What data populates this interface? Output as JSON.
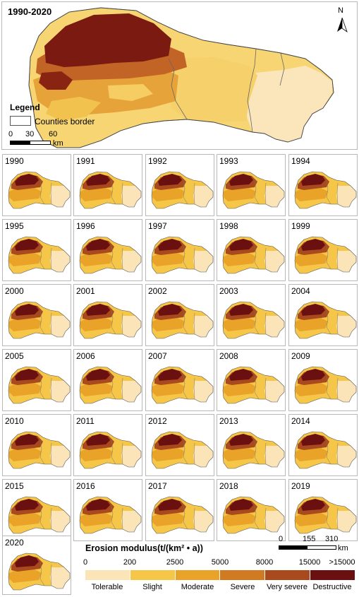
{
  "main_map": {
    "title": "1990-2020",
    "north_label": "N",
    "legend_title": "Legend",
    "legend_item": "Counties border",
    "scale_ticks": [
      "0",
      "30",
      "60"
    ],
    "scale_unit": "km"
  },
  "years": [
    "1990",
    "1991",
    "1992",
    "1993",
    "1994",
    "1995",
    "1996",
    "1997",
    "1998",
    "1999",
    "2000",
    "2001",
    "2002",
    "2003",
    "2004",
    "2005",
    "2006",
    "2007",
    "2008",
    "2009",
    "2010",
    "2011",
    "2012",
    "2013",
    "2014",
    "2015",
    "2016",
    "2017",
    "2018",
    "2019",
    "2020"
  ],
  "erosion_legend": {
    "heading": "Erosion modulus(t/(km² • a))",
    "thresholds": [
      "0",
      "200",
      "2500",
      "5000",
      "8000",
      "15000",
      ">15000"
    ],
    "classes": [
      {
        "label": "Tolerable",
        "color": "#fbe5b8"
      },
      {
        "label": "Slight",
        "color": "#f5c648"
      },
      {
        "label": "Moderate",
        "color": "#e8a328"
      },
      {
        "label": "Severe",
        "color": "#d07a22"
      },
      {
        "label": "Very severe",
        "color": "#a84a1d"
      },
      {
        "label": "Destructive",
        "color": "#6a1010"
      }
    ],
    "scale_ticks": [
      "0",
      "155",
      "310"
    ],
    "scale_unit": "km"
  }
}
